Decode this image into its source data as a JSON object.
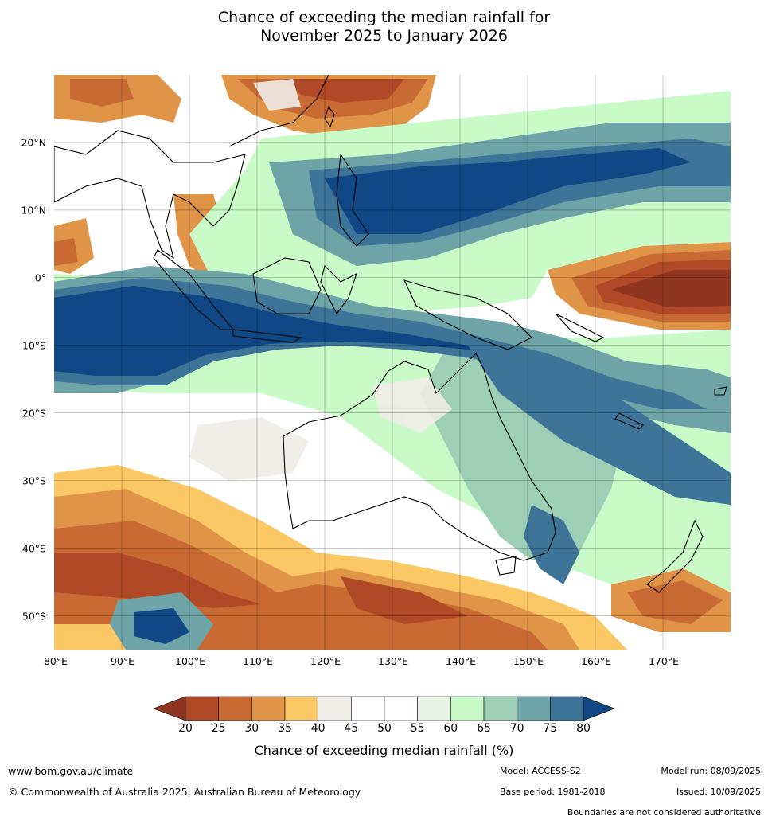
{
  "title": {
    "line1": "Chance of exceeding the median rainfall for",
    "line2": "November 2025 to January 2026"
  },
  "map": {
    "lon_range": [
      80,
      180
    ],
    "lat_range": [
      -55,
      30
    ],
    "lat_labels": [
      "20°N",
      "10°N",
      "0°",
      "10°S",
      "20°S",
      "30°S",
      "40°S",
      "50°S"
    ],
    "lat_values": [
      20,
      10,
      0,
      -10,
      -20,
      -30,
      -40,
      -50
    ],
    "lon_labels": [
      "80°E",
      "90°E",
      "100°E",
      "110°E",
      "120°E",
      "130°E",
      "140°E",
      "150°E",
      "160°E",
      "170°E"
    ],
    "lon_values": [
      80,
      90,
      100,
      110,
      120,
      130,
      140,
      150,
      160,
      170
    ],
    "gridlines": true
  },
  "colorbar": {
    "title": "Chance of exceeding median rainfall (%)",
    "ticks": [
      "20",
      "25",
      "30",
      "35",
      "40",
      "45",
      "50",
      "55",
      "60",
      "65",
      "70",
      "75",
      "80"
    ],
    "colors": [
      "#8f3520",
      "#b04a26",
      "#c96a34",
      "#e09448",
      "#fcc866",
      "#efebe6",
      "#ffffff",
      "#ffffff",
      "#e8f5e6",
      "#c8fbc8",
      "#9ccfb6",
      "#6ea4a8",
      "#3e7497",
      "#0f4884"
    ],
    "extend": "both"
  },
  "footer": {
    "url": "www.bom.gov.au/climate",
    "copyright": "© Commonwealth of Australia 2025, Australian Bureau of Meteorology",
    "model": "Model: ACCESS-S2",
    "base_period": "Base period: 1981-2018",
    "model_run": "Model run: 08/09/2025",
    "issued": "Issued: 10/09/2025",
    "boundaries_note": "Boundaries are not considered authoritative"
  }
}
